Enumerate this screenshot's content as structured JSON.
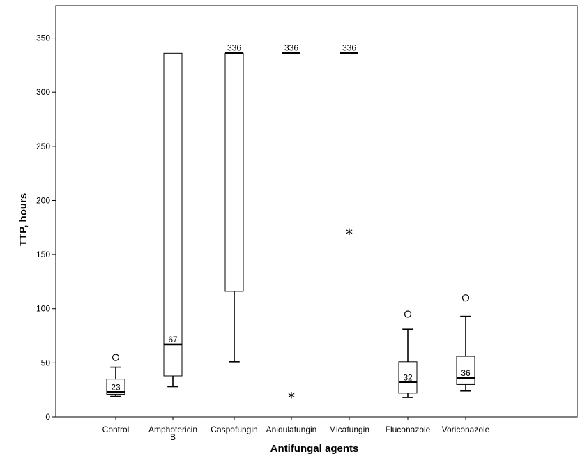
{
  "chart_data": {
    "type": "boxplot",
    "xlabel": "Antifungal agents",
    "ylabel": "TTP, hours",
    "ylim": [
      0,
      380
    ],
    "yticks": [
      0,
      50,
      100,
      150,
      200,
      250,
      300,
      350
    ],
    "grid": false,
    "categories": [
      [
        "Control"
      ],
      [
        "Amphotericin",
        "B"
      ],
      [
        "Caspofungin"
      ],
      [
        "Anidulafungin"
      ],
      [
        "Micafungin"
      ],
      [
        "Fluconazole"
      ],
      [
        "Voriconazole"
      ]
    ],
    "boxes": [
      {
        "whisker_low": 19,
        "q1": 21,
        "median": 23,
        "q3": 35,
        "whisker_high": 46,
        "median_label": "23",
        "outliers": [
          {
            "y": 55,
            "marker": "circle"
          }
        ]
      },
      {
        "whisker_low": 28,
        "q1": 38,
        "median": 67,
        "q3": 336,
        "whisker_high": 336,
        "median_label": "67",
        "outliers": []
      },
      {
        "whisker_low": 51,
        "q1": 116,
        "median": 336,
        "q3": 336,
        "whisker_high": 336,
        "median_label": "336",
        "outliers": []
      },
      {
        "whisker_low": 336,
        "q1": 336,
        "median": 336,
        "q3": 336,
        "whisker_high": 336,
        "median_label": "336",
        "outliers": [
          {
            "y": 19,
            "marker": "star"
          }
        ]
      },
      {
        "whisker_low": 336,
        "q1": 336,
        "median": 336,
        "q3": 336,
        "whisker_high": 336,
        "median_label": "336",
        "outliers": [
          {
            "y": 170,
            "marker": "star"
          }
        ]
      },
      {
        "whisker_low": 18,
        "q1": 22,
        "median": 32,
        "q3": 51,
        "whisker_high": 81,
        "median_label": "32",
        "outliers": [
          {
            "y": 95,
            "marker": "circle"
          }
        ]
      },
      {
        "whisker_low": 24,
        "q1": 30,
        "median": 36,
        "q3": 56,
        "whisker_high": 93,
        "median_label": "36",
        "outliers": [
          {
            "y": 110,
            "marker": "circle"
          }
        ]
      }
    ]
  }
}
